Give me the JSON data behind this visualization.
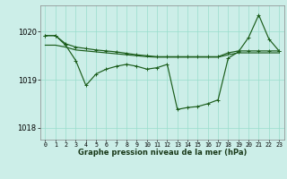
{
  "title": "Graphe pression niveau de la mer (hPa)",
  "background_color": "#cceee8",
  "grid_color": "#99ddcc",
  "line_color": "#1a5c1a",
  "x_labels": [
    "0",
    "1",
    "2",
    "3",
    "4",
    "5",
    "6",
    "7",
    "8",
    "9",
    "10",
    "11",
    "12",
    "13",
    "14",
    "15",
    "16",
    "17",
    "18",
    "19",
    "20",
    "21",
    "22",
    "23"
  ],
  "ylim": [
    1017.75,
    1020.55
  ],
  "yticks": [
    1018,
    1019,
    1020
  ],
  "series_flat": [
    1019.72,
    1019.72,
    1019.68,
    1019.62,
    1019.6,
    1019.58,
    1019.56,
    1019.54,
    1019.52,
    1019.5,
    1019.48,
    1019.47,
    1019.47,
    1019.47,
    1019.47,
    1019.47,
    1019.47,
    1019.47,
    1019.52,
    1019.56,
    1019.56,
    1019.56,
    1019.56,
    1019.56
  ],
  "series_upper": [
    1019.92,
    1019.92,
    1019.75,
    1019.68,
    1019.65,
    1019.62,
    1019.6,
    1019.58,
    1019.55,
    1019.52,
    1019.5,
    1019.48,
    1019.48,
    1019.48,
    1019.48,
    1019.48,
    1019.48,
    1019.48,
    1019.56,
    1019.6,
    1019.6,
    1019.6,
    1019.6,
    1019.6
  ],
  "series_main": [
    1019.92,
    1019.92,
    1019.72,
    1019.4,
    1018.88,
    1019.12,
    1019.22,
    1019.28,
    1019.32,
    1019.28,
    1019.22,
    1019.25,
    1019.32,
    1018.38,
    1018.42,
    1018.44,
    1018.5,
    1018.58,
    1019.45,
    1019.58,
    1019.88,
    1020.35,
    1019.85,
    1019.6
  ]
}
